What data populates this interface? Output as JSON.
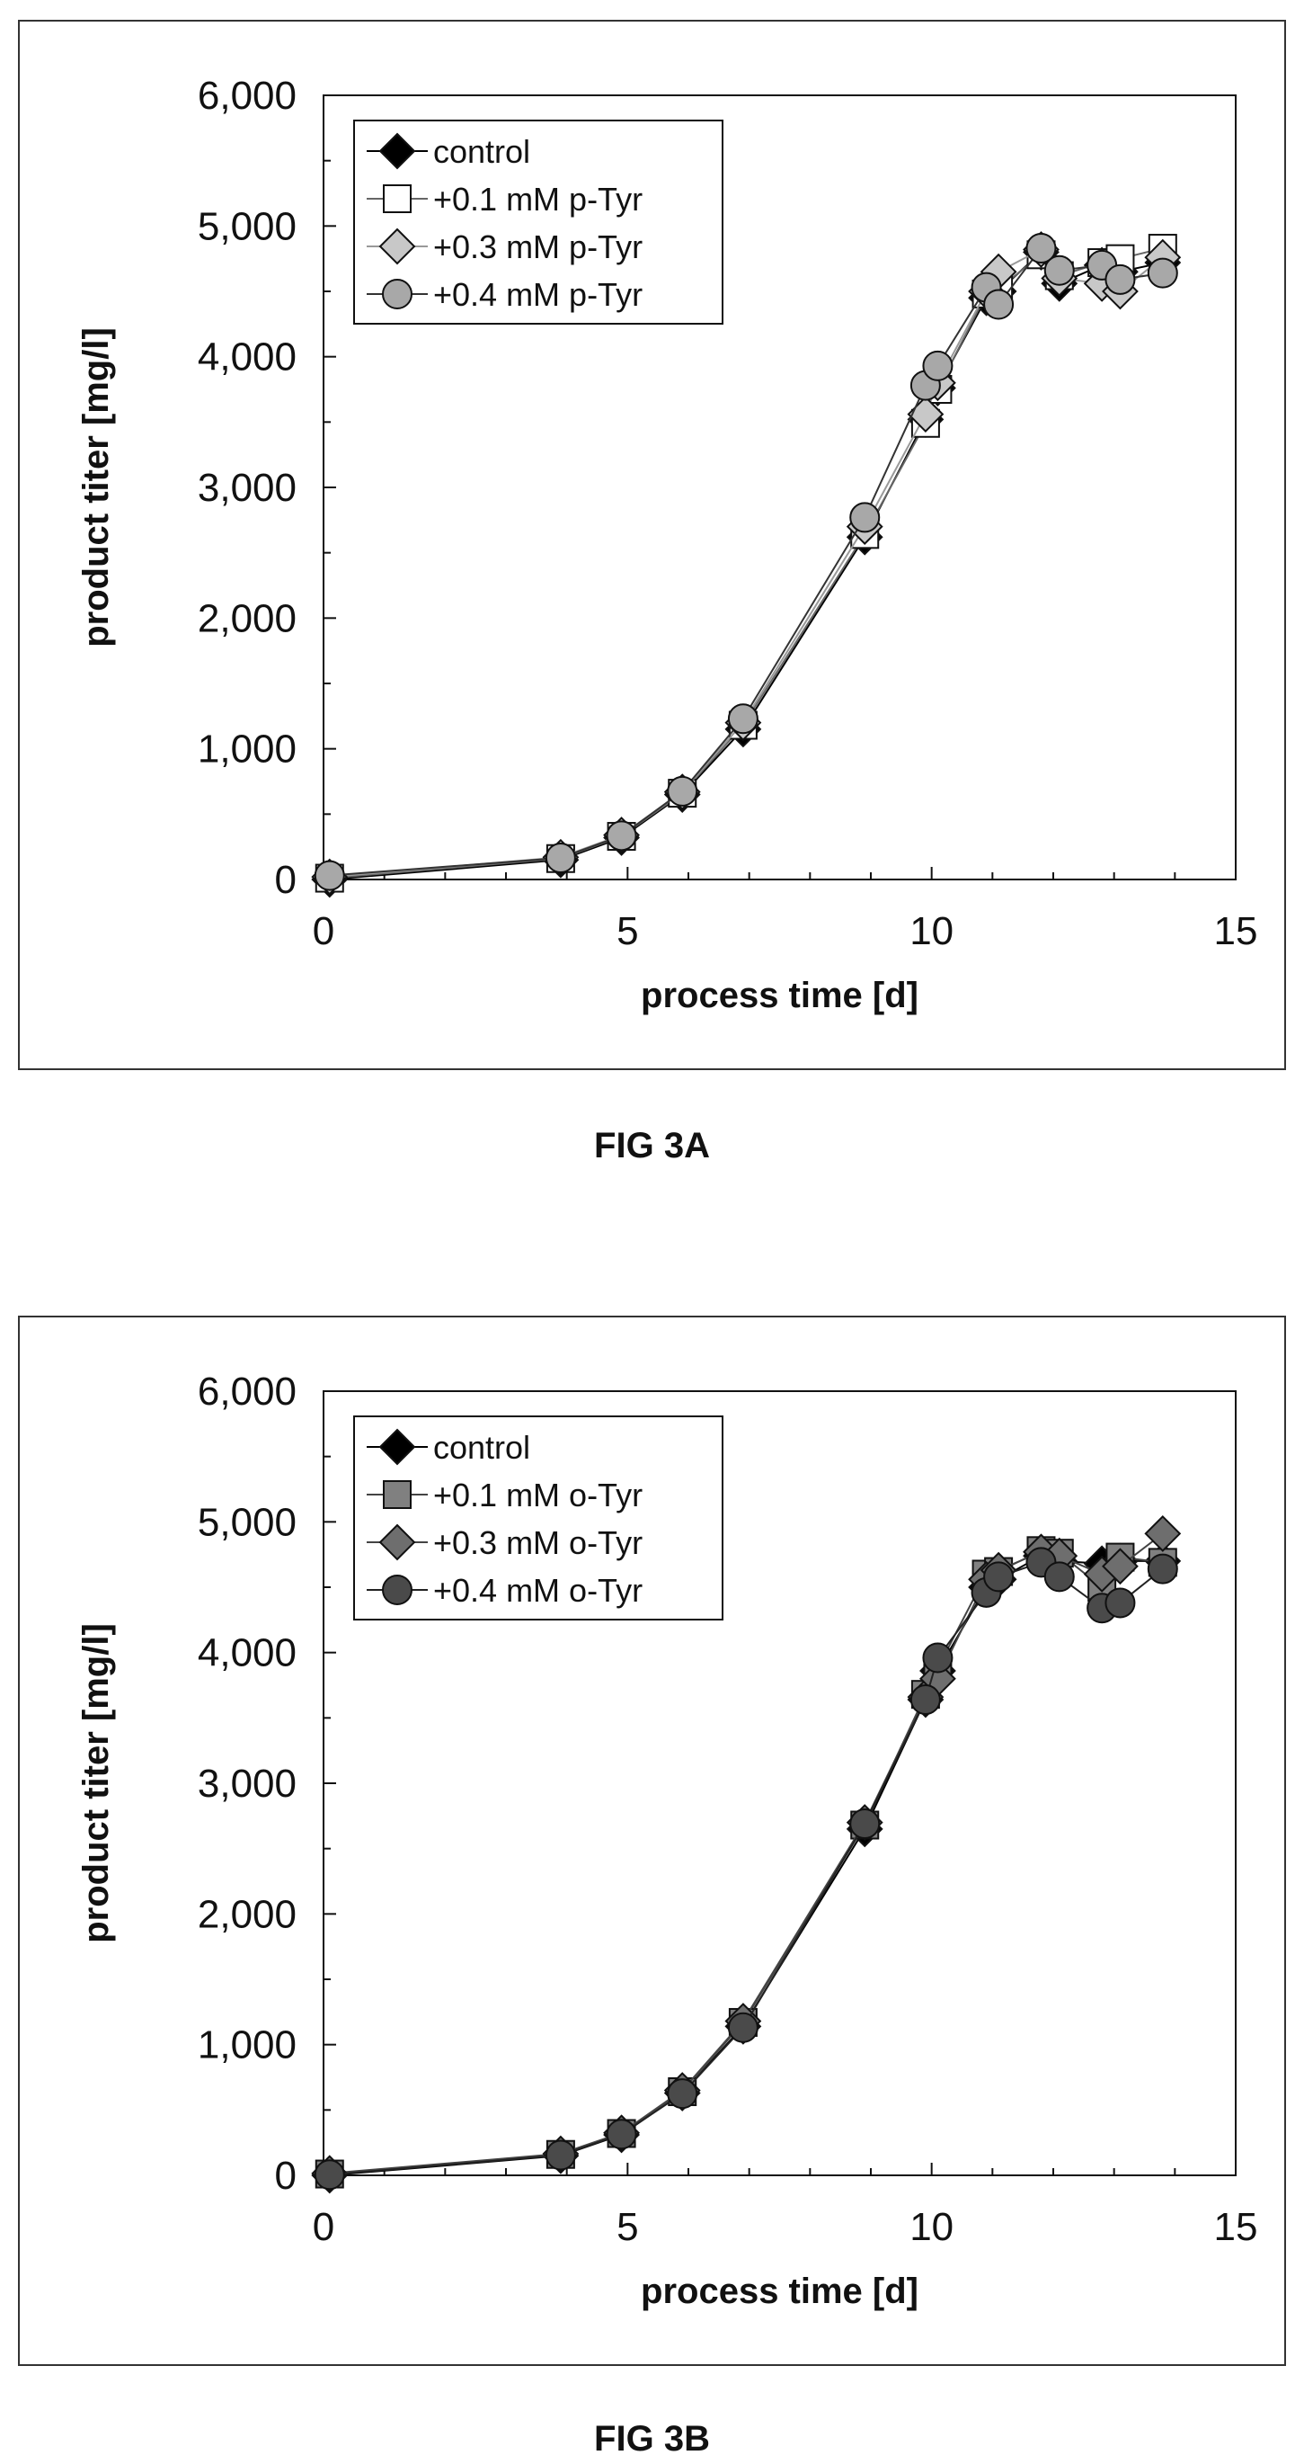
{
  "captions": {
    "a": "FIG 3A",
    "b": "FIG 3B"
  },
  "chart_data": [
    {
      "type": "scatter",
      "title": "",
      "xlabel": "process time [d]",
      "ylabel": "product titer [mg/l]",
      "xlim": [
        0,
        15
      ],
      "ylim": [
        0,
        6000
      ],
      "xticks": [
        "0",
        "5",
        "10",
        "15"
      ],
      "yticks": [
        "0",
        "1,000",
        "2,000",
        "3,000",
        "4,000",
        "5,000",
        "6,000"
      ],
      "grid": false,
      "legend": "top-left",
      "series": [
        {
          "name": "control",
          "marker": "diamond",
          "fill": "#000000",
          "line": "#000000",
          "x": [
            0.1,
            3.9,
            4.9,
            5.9,
            6.9,
            8.9,
            9.9,
            10.1,
            10.9,
            11.1,
            11.8,
            12.1,
            12.8,
            13.1,
            13.8
          ],
          "y": [
            0,
            150,
            320,
            650,
            1150,
            2620,
            3520,
            3760,
            4450,
            4500,
            4800,
            4560,
            4700,
            4650,
            4720
          ]
        },
        {
          "name": "+0.1 mM p-Tyr",
          "marker": "square",
          "fill": "#ffffff",
          "line": "#666666",
          "x": [
            0.1,
            3.9,
            4.9,
            5.9,
            6.9,
            8.9,
            9.9,
            10.1,
            10.9,
            11.1,
            11.8,
            12.1,
            12.8,
            13.1,
            13.8
          ],
          "y": [
            10,
            160,
            330,
            660,
            1180,
            2640,
            3490,
            3750,
            4480,
            4520,
            4780,
            4620,
            4720,
            4750,
            4830
          ]
        },
        {
          "name": "+0.3 mM p-Tyr",
          "marker": "diamond",
          "fill": "#c8c8c8",
          "line": "#999999",
          "x": [
            0.1,
            3.9,
            4.9,
            5.9,
            6.9,
            8.9,
            9.9,
            10.1,
            10.9,
            11.1,
            11.8,
            12.1,
            12.8,
            13.1,
            13.8
          ],
          "y": [
            20,
            170,
            340,
            670,
            1200,
            2700,
            3560,
            3800,
            4500,
            4650,
            4820,
            4600,
            4560,
            4500,
            4760
          ]
        },
        {
          "name": "+0.4 mM p-Tyr",
          "marker": "circle",
          "fill": "#a8a8a8",
          "line": "#333333",
          "x": [
            0.1,
            3.9,
            4.9,
            5.9,
            6.9,
            8.9,
            9.9,
            10.1,
            10.9,
            11.1,
            11.8,
            12.1,
            12.8,
            13.1,
            13.8
          ],
          "y": [
            30,
            165,
            335,
            675,
            1230,
            2770,
            3780,
            3930,
            4530,
            4400,
            4830,
            4660,
            4700,
            4590,
            4640
          ]
        }
      ]
    },
    {
      "type": "scatter",
      "title": "",
      "xlabel": "process time [d]",
      "ylabel": "product titer [mg/l]",
      "xlim": [
        0,
        15
      ],
      "ylim": [
        0,
        6000
      ],
      "xticks": [
        "0",
        "5",
        "10",
        "15"
      ],
      "yticks": [
        "0",
        "1,000",
        "2,000",
        "3,000",
        "4,000",
        "5,000",
        "6,000"
      ],
      "grid": false,
      "legend": "top-left",
      "series": [
        {
          "name": "control",
          "marker": "diamond",
          "fill": "#000000",
          "line": "#000000",
          "x": [
            0.1,
            3.9,
            4.9,
            5.9,
            6.9,
            8.9,
            9.9,
            10.1,
            10.9,
            11.1,
            11.8,
            12.1,
            12.8,
            13.1,
            13.8
          ],
          "y": [
            0,
            150,
            310,
            630,
            1140,
            2650,
            3640,
            3860,
            4500,
            4560,
            4740,
            4700,
            4680,
            4700,
            4700
          ]
        },
        {
          "name": "+0.1 mM o-Tyr",
          "marker": "square",
          "fill": "#808080",
          "line": "#444444",
          "x": [
            0.1,
            3.9,
            4.9,
            5.9,
            6.9,
            8.9,
            9.9,
            10.1,
            10.9,
            11.1,
            11.8,
            12.1,
            12.8,
            13.1,
            13.8
          ],
          "y": [
            10,
            160,
            320,
            640,
            1170,
            2680,
            3680,
            3880,
            4600,
            4620,
            4780,
            4760,
            4500,
            4730,
            4690
          ]
        },
        {
          "name": "+0.3 mM o-Tyr",
          "marker": "diamond",
          "fill": "#6e6e6e",
          "line": "#444444",
          "x": [
            0.1,
            3.9,
            4.9,
            5.9,
            6.9,
            8.9,
            9.9,
            10.1,
            10.9,
            11.1,
            11.8,
            12.1,
            12.8,
            13.1,
            13.8
          ],
          "y": [
            15,
            165,
            325,
            650,
            1180,
            2700,
            3660,
            3800,
            4560,
            4630,
            4770,
            4740,
            4600,
            4660,
            4910
          ]
        },
        {
          "name": "+0.4 mM o-Tyr",
          "marker": "circle",
          "fill": "#4a4a4a",
          "line": "#222222",
          "x": [
            0.1,
            3.9,
            4.9,
            5.9,
            6.9,
            8.9,
            9.9,
            10.1,
            10.9,
            11.1,
            11.8,
            12.1,
            12.8,
            13.1,
            13.8
          ],
          "y": [
            5,
            155,
            315,
            625,
            1130,
            2690,
            3640,
            3960,
            4460,
            4580,
            4690,
            4580,
            4340,
            4380,
            4640
          ]
        }
      ]
    }
  ]
}
